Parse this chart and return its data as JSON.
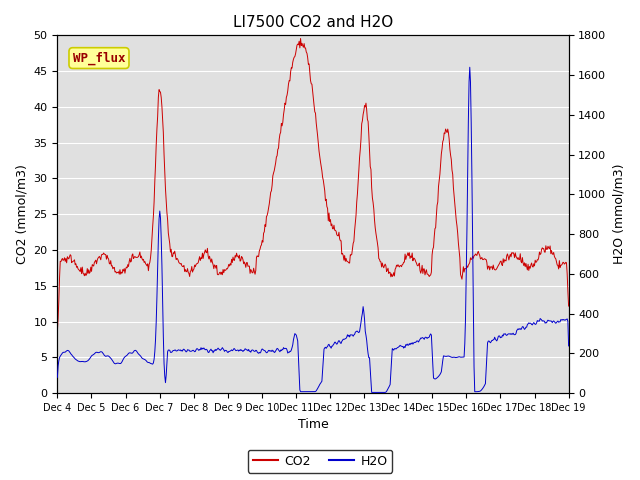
{
  "title": "LI7500 CO2 and H2O",
  "xlabel": "Time",
  "ylabel_left": "CO2 (mmol/m3)",
  "ylabel_right": "H2O (mmol/m3)",
  "ylim_left": [
    0,
    50
  ],
  "ylim_right": [
    0,
    1800
  ],
  "yticks_left": [
    0,
    5,
    10,
    15,
    20,
    25,
    30,
    35,
    40,
    45,
    50
  ],
  "yticks_right": [
    0,
    200,
    400,
    600,
    800,
    1000,
    1200,
    1400,
    1600,
    1800
  ],
  "xtick_labels": [
    "Dec 4",
    "Dec 5",
    "Dec 6",
    "Dec 7",
    "Dec 8",
    "Dec 9",
    "Dec 10",
    "Dec 11",
    "Dec 12",
    "Dec 13",
    "Dec 14",
    "Dec 15",
    "Dec 16",
    "Dec 17",
    "Dec 18",
    "Dec 19"
  ],
  "co2_color": "#cc0000",
  "h2o_color": "#0000cc",
  "background_color": "#e0e0e0",
  "legend_text_co2": "CO2",
  "legend_text_h2o": "H2O",
  "annotation_text": "WP_flux",
  "annotation_color": "#990000",
  "annotation_bg": "#ffff99",
  "annotation_edge": "#cccc00",
  "title_fontsize": 11,
  "axis_label_fontsize": 9,
  "tick_fontsize": 8
}
